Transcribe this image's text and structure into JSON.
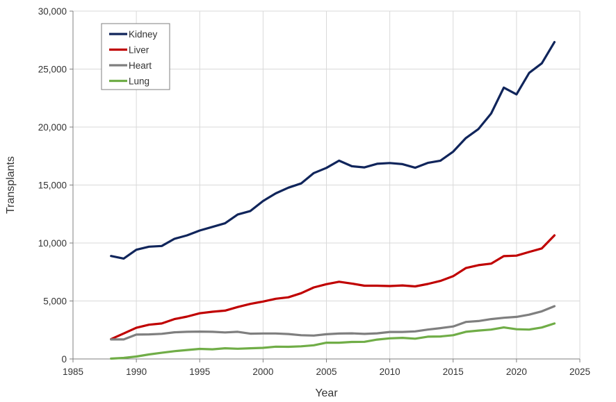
{
  "chart_data": {
    "type": "line",
    "title": "",
    "xlabel": "Year",
    "ylabel": "Transplants",
    "xlim": [
      1985,
      2025
    ],
    "ylim": [
      0,
      30000
    ],
    "x_ticks": [
      1985,
      1990,
      1995,
      2000,
      2005,
      2010,
      2015,
      2020,
      2025
    ],
    "x_tick_labels": [
      "1985",
      "1990",
      "1995",
      "2000",
      "2005",
      "2010",
      "2015",
      "2020",
      "2025"
    ],
    "y_ticks": [
      0,
      5000,
      10000,
      15000,
      20000,
      25000,
      30000
    ],
    "y_tick_labels": [
      "0",
      "5,000",
      "10,000",
      "15,000",
      "20,000",
      "25,000",
      "30,000"
    ],
    "grid": true,
    "legend_position": "top-left",
    "x": [
      1988,
      1989,
      1990,
      1991,
      1992,
      1993,
      1994,
      1995,
      1996,
      1997,
      1998,
      1999,
      2000,
      2001,
      2002,
      2003,
      2004,
      2005,
      2006,
      2007,
      2008,
      2009,
      2010,
      2011,
      2012,
      2013,
      2014,
      2015,
      2016,
      2017,
      2018,
      2019,
      2020,
      2021,
      2022,
      2023
    ],
    "series": [
      {
        "name": "Kidney",
        "color": "#10255b",
        "values": [
          8880,
          8660,
          9420,
          9680,
          9740,
          10360,
          10660,
          11080,
          11390,
          11700,
          12460,
          12760,
          13620,
          14280,
          14770,
          15140,
          16030,
          16480,
          17100,
          16620,
          16520,
          16830,
          16900,
          16800,
          16490,
          16910,
          17100,
          17880,
          19050,
          19830,
          21170,
          23400,
          22820,
          24670,
          25500,
          27330
        ]
      },
      {
        "name": "Liver",
        "color": "#c00000",
        "values": [
          1710,
          2200,
          2690,
          2950,
          3060,
          3440,
          3650,
          3940,
          4070,
          4170,
          4480,
          4750,
          4950,
          5190,
          5320,
          5670,
          6170,
          6450,
          6660,
          6500,
          6320,
          6320,
          6290,
          6340,
          6260,
          6470,
          6730,
          7140,
          7840,
          8090,
          8220,
          8870,
          8910,
          9230,
          9530,
          10660
        ]
      },
      {
        "name": "Heart",
        "color": "#7f7f7f",
        "values": [
          1680,
          1680,
          2100,
          2120,
          2170,
          2300,
          2340,
          2360,
          2340,
          2290,
          2340,
          2180,
          2200,
          2200,
          2150,
          2050,
          2020,
          2130,
          2190,
          2210,
          2160,
          2210,
          2330,
          2330,
          2380,
          2530,
          2660,
          2800,
          3190,
          3270,
          3440,
          3550,
          3630,
          3820,
          4110,
          4550
        ]
      },
      {
        "name": "Lung",
        "color": "#70ad47",
        "values": [
          30,
          90,
          210,
          390,
          530,
          670,
          770,
          870,
          830,
          920,
          880,
          920,
          960,
          1060,
          1050,
          1090,
          1180,
          1400,
          1400,
          1470,
          1480,
          1670,
          1780,
          1820,
          1750,
          1920,
          1940,
          2050,
          2340,
          2450,
          2530,
          2720,
          2560,
          2530,
          2710,
          3060
        ]
      }
    ]
  }
}
